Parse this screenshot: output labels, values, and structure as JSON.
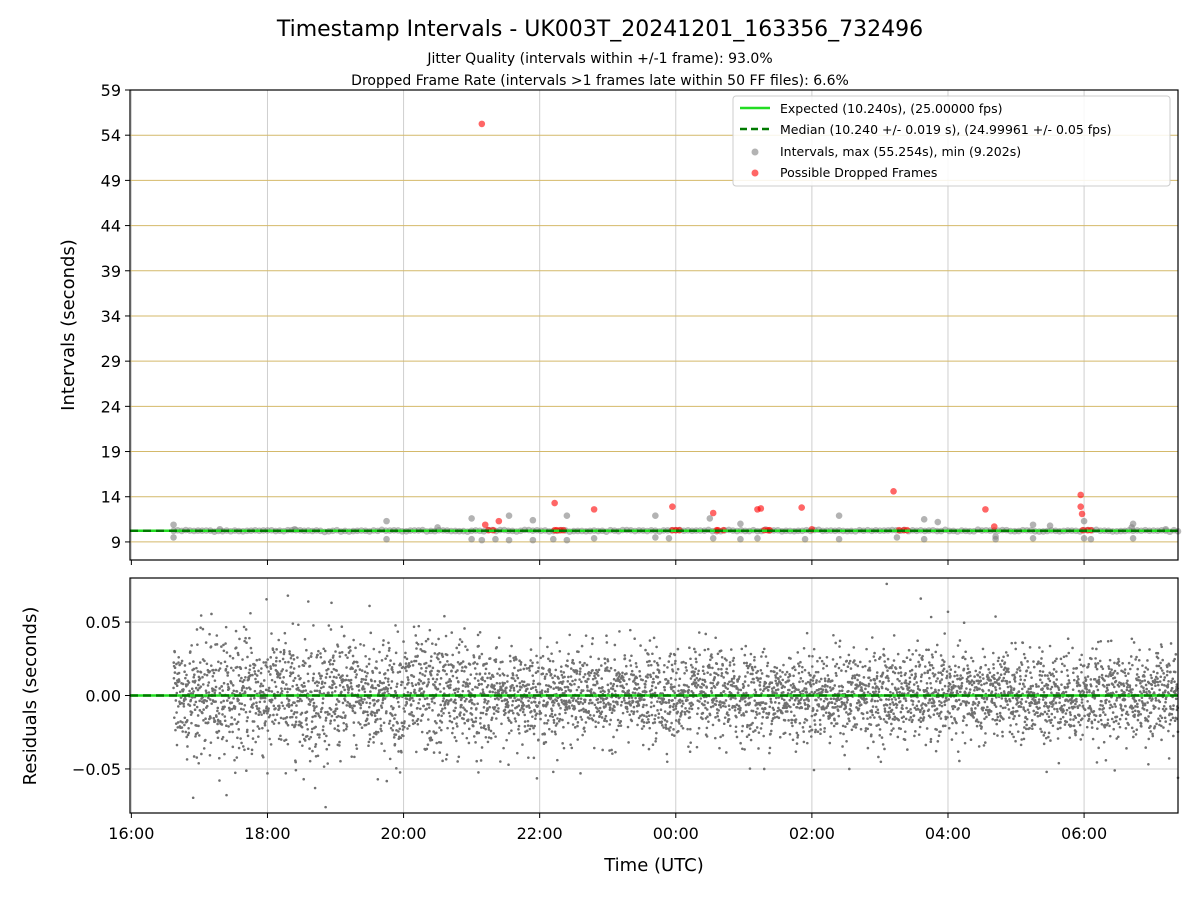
{
  "chart_data": [
    {
      "type": "scatter",
      "title": "Timestamp Intervals - UK003T_20241201_163356_732496",
      "subtitle_1": "Jitter Quality (intervals within +/-1 frame): 93.0%",
      "subtitle_2": "Dropped Frame Rate (intervals >1 frames late within 50 FF files): 6.6%",
      "xlabel": "Time (UTC)",
      "ylabel": "Intervals (seconds)",
      "x_range_hours": [
        15.98,
        31.38
      ],
      "x_note": "hours since 00:00 of the first day; 24 = 00:00 next day",
      "y_range": [
        7.0,
        59.0
      ],
      "y_ticks": [
        9,
        14,
        19,
        24,
        29,
        34,
        39,
        44,
        49,
        54,
        59
      ],
      "x_ticks": [
        {
          "hour": 16,
          "label": "16:00"
        },
        {
          "hour": 18,
          "label": "18:00"
        },
        {
          "hour": 20,
          "label": "20:00"
        },
        {
          "hour": 22,
          "label": "22:00"
        },
        {
          "hour": 24,
          "label": "00:00"
        },
        {
          "hour": 26,
          "label": "02:00"
        },
        {
          "hour": 28,
          "label": "04:00"
        },
        {
          "hour": 30,
          "label": "06:00"
        }
      ],
      "expected_interval": 10.24,
      "median_interval": 10.24,
      "legend": {
        "placement": "top-right",
        "expected": "Expected (10.240s), (25.00000 fps)",
        "median": "Median (10.240 +/- 0.019 s), (24.99961 +/- 0.05 fps)",
        "intervals": "Intervals, max (55.254s), min (9.202s)",
        "dropped": "Possible Dropped Frames"
      },
      "series": [
        {
          "name": "Intervals, max (55.254s), min (9.202s)",
          "color": "#808080",
          "points": [
            [
              16.62,
              10.9
            ],
            [
              16.62,
              9.5
            ],
            [
              17.3,
              10.4
            ],
            [
              18.4,
              10.4
            ],
            [
              19.75,
              11.3
            ],
            [
              19.75,
              9.3
            ],
            [
              20.5,
              10.6
            ],
            [
              21.0,
              11.6
            ],
            [
              21.0,
              9.3
            ],
            [
              21.15,
              9.2
            ],
            [
              21.35,
              9.3
            ],
            [
              21.55,
              11.9
            ],
            [
              21.55,
              9.2
            ],
            [
              21.9,
              11.4
            ],
            [
              21.9,
              9.2
            ],
            [
              22.2,
              9.3
            ],
            [
              22.4,
              11.9
            ],
            [
              22.4,
              9.2
            ],
            [
              22.8,
              9.4
            ],
            [
              23.7,
              11.9
            ],
            [
              23.7,
              9.5
            ],
            [
              23.9,
              9.4
            ],
            [
              24.5,
              11.6
            ],
            [
              24.55,
              9.4
            ],
            [
              24.95,
              9.3
            ],
            [
              24.95,
              11.0
            ],
            [
              25.2,
              9.4
            ],
            [
              25.9,
              9.3
            ],
            [
              26.4,
              11.9
            ],
            [
              26.4,
              9.3
            ],
            [
              27.25,
              9.5
            ],
            [
              27.65,
              11.5
            ],
            [
              27.65,
              9.3
            ],
            [
              27.85,
              11.2
            ],
            [
              28.7,
              9.3
            ],
            [
              28.7,
              9.6
            ],
            [
              29.25,
              10.9
            ],
            [
              29.25,
              9.4
            ],
            [
              29.5,
              10.8
            ],
            [
              30.0,
              11.3
            ],
            [
              30.0,
              9.4
            ],
            [
              30.1,
              9.3
            ],
            [
              30.7,
              10.6
            ],
            [
              30.72,
              11.0
            ],
            [
              30.72,
              9.4
            ],
            [
              31.2,
              10.4
            ]
          ]
        },
        {
          "name": "Possible Dropped Frames",
          "color": "#ff0000",
          "points": [
            [
              21.15,
              55.25
            ],
            [
              21.2,
              10.9
            ],
            [
              21.4,
              11.3
            ],
            [
              22.22,
              13.3
            ],
            [
              22.22,
              10.3
            ],
            [
              22.35,
              10.3
            ],
            [
              22.8,
              12.6
            ],
            [
              23.95,
              12.9
            ],
            [
              24.05,
              10.3
            ],
            [
              24.55,
              12.2
            ],
            [
              24.62,
              10.3
            ],
            [
              25.2,
              12.6
            ],
            [
              25.25,
              12.7
            ],
            [
              25.35,
              10.3
            ],
            [
              25.85,
              12.8
            ],
            [
              26.0,
              10.4
            ],
            [
              27.2,
              14.6
            ],
            [
              27.35,
              10.3
            ],
            [
              28.55,
              12.6
            ],
            [
              28.68,
              10.7
            ],
            [
              29.95,
              14.2
            ],
            [
              29.95,
              12.9
            ],
            [
              29.97,
              12.1
            ],
            [
              30.05,
              10.3
            ]
          ]
        }
      ]
    },
    {
      "type": "scatter",
      "xlabel": "Time (UTC)",
      "ylabel": "Residuals (seconds)",
      "x_range_hours": [
        15.98,
        31.38
      ],
      "y_range": [
        -0.08,
        0.08
      ],
      "y_ticks": [
        {
          "value": 0.05,
          "label": "0.05"
        },
        {
          "value": 0.0,
          "label": "0.00"
        },
        {
          "value": -0.05,
          "label": "−0.05"
        }
      ],
      "residual_spread": {
        "start_hour": 16.62,
        "end_hour": 31.38,
        "std_first_segment": 0.02,
        "first_segment_end_hour": 21.2,
        "std_second_segment": 0.015
      },
      "notable_points": [
        [
          17.75,
          0.056
        ],
        [
          18.3,
          0.068
        ],
        [
          18.6,
          0.064
        ],
        [
          19.5,
          0.061
        ],
        [
          20.6,
          0.054
        ],
        [
          27.1,
          0.076
        ],
        [
          28.0,
          0.057
        ],
        [
          27.6,
          0.066
        ],
        [
          18.0,
          -0.053
        ],
        [
          18.7,
          -0.063
        ],
        [
          22.2,
          -0.052
        ],
        [
          22.6,
          -0.053
        ],
        [
          25.3,
          -0.05
        ],
        [
          26.55,
          -0.05
        ],
        [
          29.45,
          -0.052
        ],
        [
          30.45,
          -0.051
        ],
        [
          31.38,
          -0.056
        ]
      ],
      "zero_line": 0.0,
      "color": "#707070"
    }
  ],
  "colors": {
    "expected_line": "#22dd22",
    "median_line": "#007a00",
    "grid_gold": "#d4b96a",
    "grid_gray": "#cfcfcf",
    "interval_point": "#808080",
    "dropped_point": "#ff0000"
  }
}
